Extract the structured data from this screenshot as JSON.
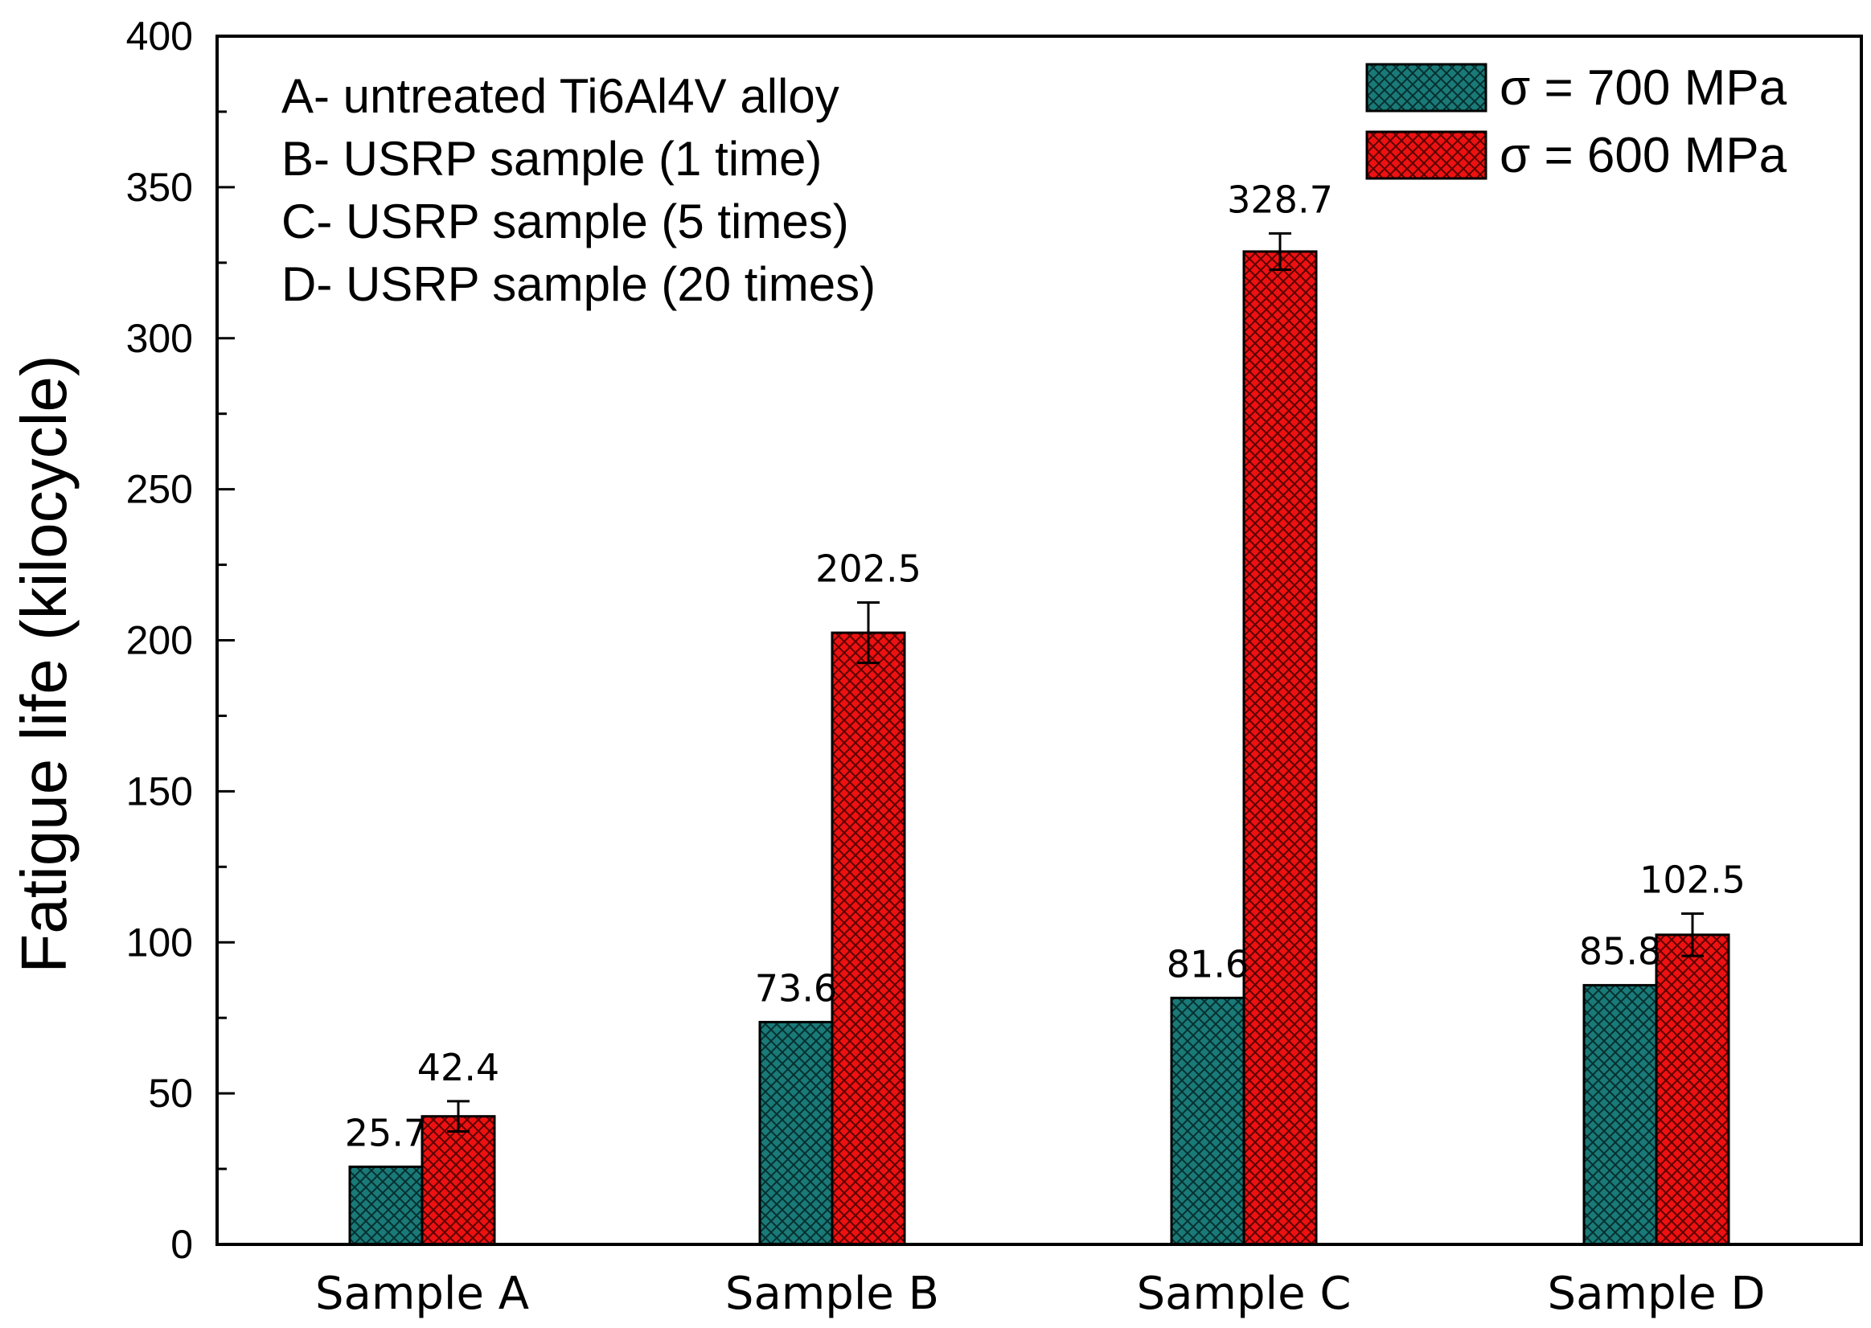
{
  "chart_data": {
    "type": "bar",
    "title": "",
    "xlabel": "",
    "ylabel": "Fatigue life (kilocycle)",
    "ylim": [
      0,
      400
    ],
    "yticks": [
      0,
      50,
      100,
      150,
      200,
      250,
      300,
      350,
      400
    ],
    "grid": false,
    "legend_position": "top-right",
    "categories": [
      "Sample A",
      "Sample B",
      "Sample C",
      "Sample D"
    ],
    "series": [
      {
        "name": "σ = 700 MPa",
        "color": "#1a7a78",
        "values": [
          25.7,
          73.6,
          81.6,
          85.8
        ],
        "labels": [
          "25.7",
          "73.6",
          "81.6",
          "85.8"
        ],
        "errors": [
          0,
          0,
          0,
          0
        ]
      },
      {
        "name": "σ = 600 MPa",
        "color": "#ee1111",
        "values": [
          42.4,
          202.5,
          328.7,
          102.5
        ],
        "labels": [
          "42.4",
          "202.5",
          "328.7",
          "102.5"
        ],
        "errors": [
          5,
          10,
          6,
          7
        ]
      }
    ],
    "annotations": [
      "A- untreated Ti6Al4V alloy",
      "B- USRP sample (1 time)",
      "C- USRP sample (5 times)",
      "D- USRP sample (20 times)"
    ]
  }
}
